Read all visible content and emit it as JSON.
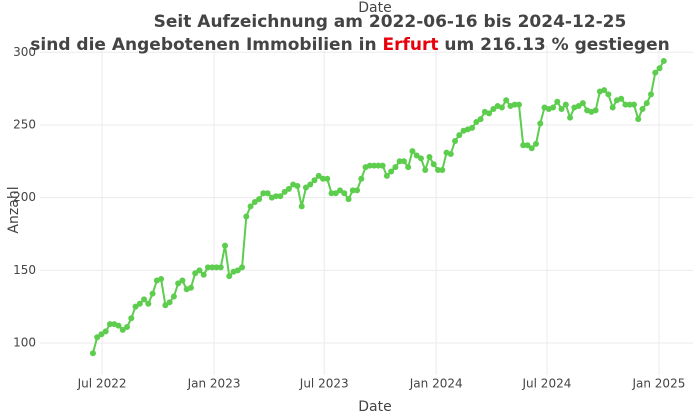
{
  "chart_data": {
    "type": "line",
    "title": {
      "line1": "Seit Aufzeichnung am 2022-06-16 bis  2024-12-25",
      "line2_prefix": "sind die Angebotenen Immobilien in",
      "city": "Erfurt",
      "line2_suffix": "um 216.13 % gestiegen"
    },
    "city_color": "#e8000b",
    "x_label": "Date",
    "y_label": "Anzahl",
    "color": "#5dcd4e",
    "grid": true,
    "xlim": [
      "2022-03-21",
      "2025-02-26"
    ],
    "xticks": [
      {
        "value": "2022-07-01",
        "label": "Jul 2022"
      },
      {
        "value": "2023-01-01",
        "label": "Jan 2023"
      },
      {
        "value": "2023-07-01",
        "label": "Jul 2023"
      },
      {
        "value": "2024-01-01",
        "label": "Jan 2024"
      },
      {
        "value": "2024-07-01",
        "label": "Jul 2024"
      },
      {
        "value": "2025-01-01",
        "label": "Jan 2025"
      }
    ],
    "ylim": [
      78,
      305
    ],
    "yticks": [
      100,
      150,
      200,
      250,
      300
    ],
    "x": [
      "2022-06-16",
      "2022-06-23",
      "2022-06-30",
      "2022-07-07",
      "2022-07-14",
      "2022-07-21",
      "2022-07-28",
      "2022-08-04",
      "2022-08-11",
      "2022-08-18",
      "2022-08-25",
      "2022-09-01",
      "2022-09-08",
      "2022-09-15",
      "2022-09-22",
      "2022-09-29",
      "2022-10-06",
      "2022-10-13",
      "2022-10-20",
      "2022-10-27",
      "2022-11-03",
      "2022-11-10",
      "2022-11-17",
      "2022-11-24",
      "2022-12-01",
      "2022-12-08",
      "2022-12-15",
      "2022-12-22",
      "2022-12-29",
      "2023-01-05",
      "2023-01-12",
      "2023-01-19",
      "2023-01-26",
      "2023-02-02",
      "2023-02-09",
      "2023-02-16",
      "2023-02-23",
      "2023-03-02",
      "2023-03-09",
      "2023-03-16",
      "2023-03-23",
      "2023-03-30",
      "2023-04-06",
      "2023-04-13",
      "2023-04-20",
      "2023-04-27",
      "2023-05-04",
      "2023-05-11",
      "2023-05-18",
      "2023-05-25",
      "2023-06-01",
      "2023-06-08",
      "2023-06-15",
      "2023-06-22",
      "2023-06-29",
      "2023-07-06",
      "2023-07-13",
      "2023-07-20",
      "2023-07-27",
      "2023-08-03",
      "2023-08-10",
      "2023-08-17",
      "2023-08-24",
      "2023-08-31",
      "2023-09-07",
      "2023-09-14",
      "2023-09-21",
      "2023-09-28",
      "2023-10-05",
      "2023-10-12",
      "2023-10-19",
      "2023-10-26",
      "2023-11-02",
      "2023-11-09",
      "2023-11-16",
      "2023-11-23",
      "2023-11-30",
      "2023-12-07",
      "2023-12-14",
      "2023-12-21",
      "2023-12-28",
      "2024-01-04",
      "2024-01-11",
      "2024-01-18",
      "2024-01-25",
      "2024-02-01",
      "2024-02-08",
      "2024-02-15",
      "2024-02-22",
      "2024-02-29",
      "2024-03-07",
      "2024-03-14",
      "2024-03-21",
      "2024-03-28",
      "2024-04-04",
      "2024-04-11",
      "2024-04-18",
      "2024-04-25",
      "2024-05-02",
      "2024-05-09",
      "2024-05-16",
      "2024-05-23",
      "2024-05-30",
      "2024-06-06",
      "2024-06-13",
      "2024-06-20",
      "2024-06-27",
      "2024-07-04",
      "2024-07-11",
      "2024-07-18",
      "2024-07-25",
      "2024-08-01",
      "2024-08-08",
      "2024-08-15",
      "2024-08-22",
      "2024-08-29",
      "2024-09-05",
      "2024-09-12",
      "2024-09-19",
      "2024-09-26",
      "2024-10-03",
      "2024-10-10",
      "2024-10-17",
      "2024-10-24",
      "2024-10-31",
      "2024-11-07",
      "2024-11-14",
      "2024-11-21",
      "2024-11-28",
      "2024-12-05",
      "2024-12-12",
      "2024-12-19",
      "2024-12-26",
      "2025-01-02",
      "2025-01-09"
    ],
    "values": [
      93,
      104,
      106,
      108,
      113,
      113,
      112,
      109,
      111,
      117,
      125,
      127,
      130,
      127,
      134,
      143,
      144,
      126,
      128,
      132,
      141,
      143,
      137,
      138,
      148,
      150,
      147,
      152,
      152,
      152,
      152,
      167,
      146,
      149,
      150,
      152,
      187,
      194,
      197,
      199,
      203,
      203,
      200,
      201,
      201,
      204,
      206,
      209,
      208,
      194,
      207,
      209,
      212,
      215,
      213,
      213,
      203,
      203,
      205,
      203,
      199,
      205,
      205,
      213,
      221,
      222,
      222,
      222,
      222,
      215,
      218,
      221,
      225,
      225,
      221,
      232,
      229,
      227,
      219,
      228,
      223,
      219,
      219,
      231,
      230,
      239,
      243,
      246,
      247,
      248,
      252,
      254,
      259,
      258,
      261,
      263,
      262,
      267,
      263,
      264,
      264,
      236,
      236,
      234,
      237,
      251,
      262,
      261,
      262,
      266,
      261,
      264,
      255,
      262,
      263,
      265,
      260,
      259,
      260,
      273,
      274,
      271,
      262,
      267,
      268,
      264,
      264,
      264,
      254,
      261,
      265,
      271,
      286,
      289,
      294
    ]
  }
}
